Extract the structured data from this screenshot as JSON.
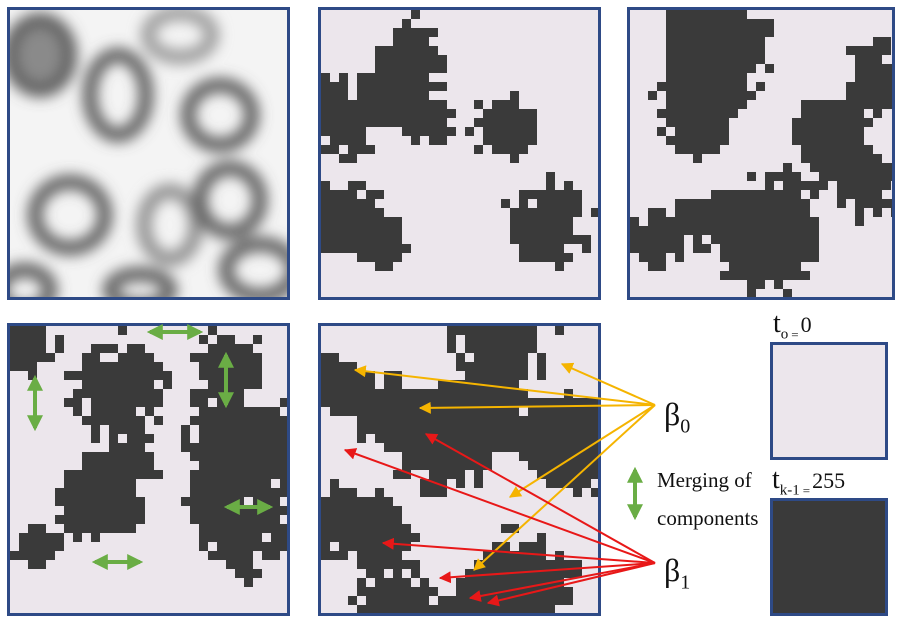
{
  "labels": {
    "beta0": {
      "symbol": "β",
      "sub": "0"
    },
    "beta1": {
      "symbol": "β",
      "sub": "1"
    },
    "merge_line1": "Merging of",
    "merge_line2": "components",
    "t0": {
      "base": "t",
      "sub": "o",
      "eq": "=",
      "value": "0"
    },
    "tk": {
      "base": "t",
      "sub": "k-1",
      "eq": "=",
      "value": "255"
    }
  },
  "colors": {
    "panel_border": "#2e4a86",
    "foreground_dark": "#3a3a3a",
    "background_light": "#ece6ec",
    "beta0_arrows": "#f5b400",
    "beta1_arrows": "#e81818",
    "merge_arrows": "#6aad45"
  },
  "panels": [
    {
      "id": "grayscale-image",
      "kind": "blurred-cells"
    },
    {
      "id": "threshold-low",
      "kind": "binary",
      "density": 0.28,
      "seed": 11
    },
    {
      "id": "threshold-mid",
      "kind": "binary",
      "density": 0.46,
      "seed": 23
    },
    {
      "id": "threshold-merging",
      "kind": "binary",
      "density": 0.52,
      "seed": 37
    },
    {
      "id": "threshold-high",
      "kind": "binary",
      "density": 0.6,
      "seed": 41
    }
  ]
}
